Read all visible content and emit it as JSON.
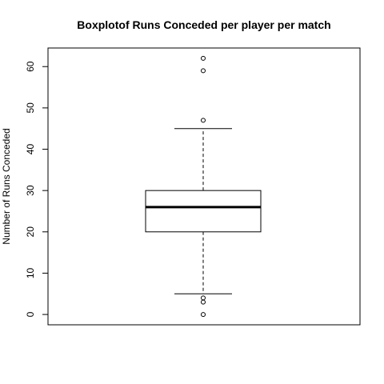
{
  "chart_data": {
    "type": "boxplot",
    "title": "Boxplotof Runs Conceded per player per match",
    "xlabel": "",
    "ylabel": "Number of Runs Conceded",
    "ylim": [
      -2.5,
      64.5
    ],
    "yticks": [
      0,
      10,
      20,
      30,
      40,
      50,
      60
    ],
    "grid": false,
    "box": {
      "lower_whisker": 5,
      "q1": 20,
      "median": 26,
      "q3": 30,
      "upper_whisker": 45
    },
    "outliers": [
      62,
      59,
      47,
      4,
      3,
      0
    ]
  }
}
